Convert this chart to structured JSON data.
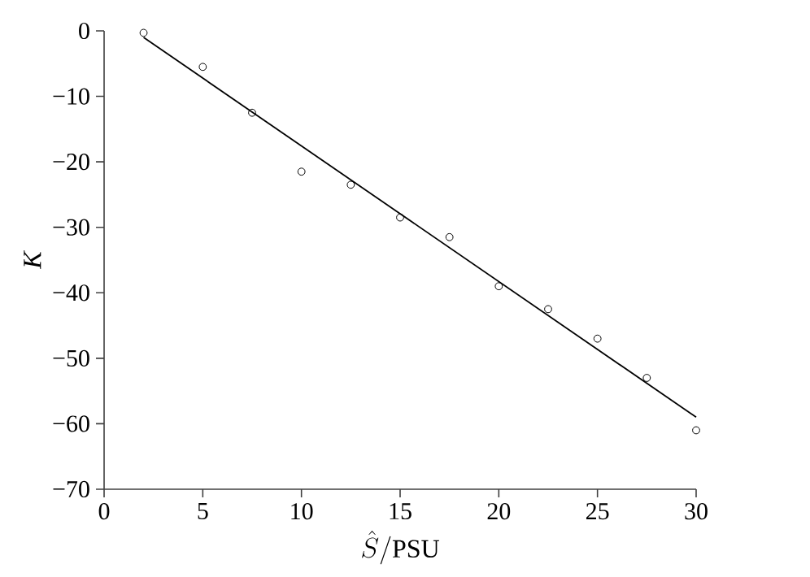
{
  "chart_data": {
    "type": "scatter",
    "xlabel": "\\hat{S}/\\mathrm{PSU}",
    "ylabel": "K",
    "xlim": [
      0,
      30
    ],
    "ylim": [
      -70,
      0
    ],
    "xticks": [
      0,
      5,
      10,
      15,
      20,
      25,
      30
    ],
    "yticks": [
      {
        "value": -70,
        "label": "−70"
      },
      {
        "value": -60,
        "label": "−60"
      },
      {
        "value": -50,
        "label": "−50"
      },
      {
        "value": -40,
        "label": "−40"
      },
      {
        "value": -30,
        "label": "−30"
      },
      {
        "value": -20,
        "label": "−20"
      },
      {
        "value": -10,
        "label": "−10"
      },
      0
    ],
    "marker": "circle",
    "series": [
      {
        "color": "#000000",
        "x": [
          2,
          5,
          7.5,
          10,
          12.5,
          15,
          17.5,
          20,
          22.5,
          25,
          27.5,
          30
        ],
        "values": [
          -0.3,
          -5.5,
          -12.5,
          -21.5,
          -23.5,
          -28.5,
          -31.5,
          -39,
          -42.5,
          -47,
          -53,
          -61
        ]
      },
      {
        "type": "line",
        "color": "#000000",
        "line_style": "solid",
        "marker": "none",
        "x": [
          2,
          30
        ],
        "values": [
          -1,
          -59
        ]
      }
    ]
  }
}
